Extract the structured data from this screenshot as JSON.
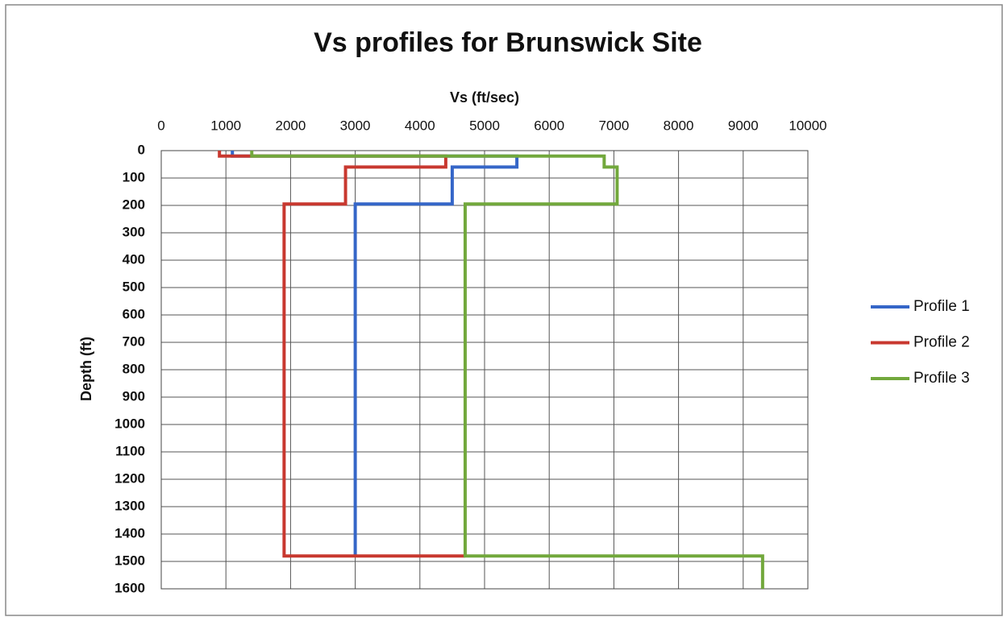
{
  "chart_data": {
    "type": "line",
    "title": "Vs profiles for Brunswick Site",
    "x_label": "Vs (ft/sec)",
    "y_label": "Depth (ft)",
    "xlim": [
      0,
      10000
    ],
    "xticks": [
      0,
      1000,
      2000,
      3000,
      4000,
      5000,
      6000,
      7000,
      8000,
      9000,
      10000
    ],
    "ylim": [
      0,
      1600
    ],
    "yticks": [
      0,
      100,
      200,
      300,
      400,
      500,
      600,
      700,
      800,
      900,
      1000,
      1100,
      1200,
      1300,
      1400,
      1500,
      1600
    ],
    "y_inverted": true,
    "x_axis_position": "top",
    "grid": true,
    "legend": "right",
    "series": [
      {
        "name": "Profile 1",
        "color": "#3566c8",
        "x": [
          1100,
          1100,
          5500,
          5500,
          4500,
          4500,
          3000,
          3000
        ],
        "values": [
          0,
          20,
          20,
          60,
          60,
          195,
          195,
          1480
        ]
      },
      {
        "name": "Profile 2",
        "color": "#c8382f",
        "x": [
          900,
          900,
          4400,
          4400,
          2850,
          2850,
          1900,
          1900,
          4700
        ],
        "values": [
          0,
          20,
          20,
          60,
          60,
          195,
          195,
          1480,
          1480
        ]
      },
      {
        "name": "Profile 3",
        "color": "#72a83c",
        "x": [
          1400,
          1400,
          6850,
          6850,
          7050,
          7050,
          4700,
          4700,
          9300,
          9300
        ],
        "values": [
          0,
          20,
          20,
          60,
          60,
          195,
          195,
          1480,
          1480,
          1600
        ]
      }
    ]
  }
}
